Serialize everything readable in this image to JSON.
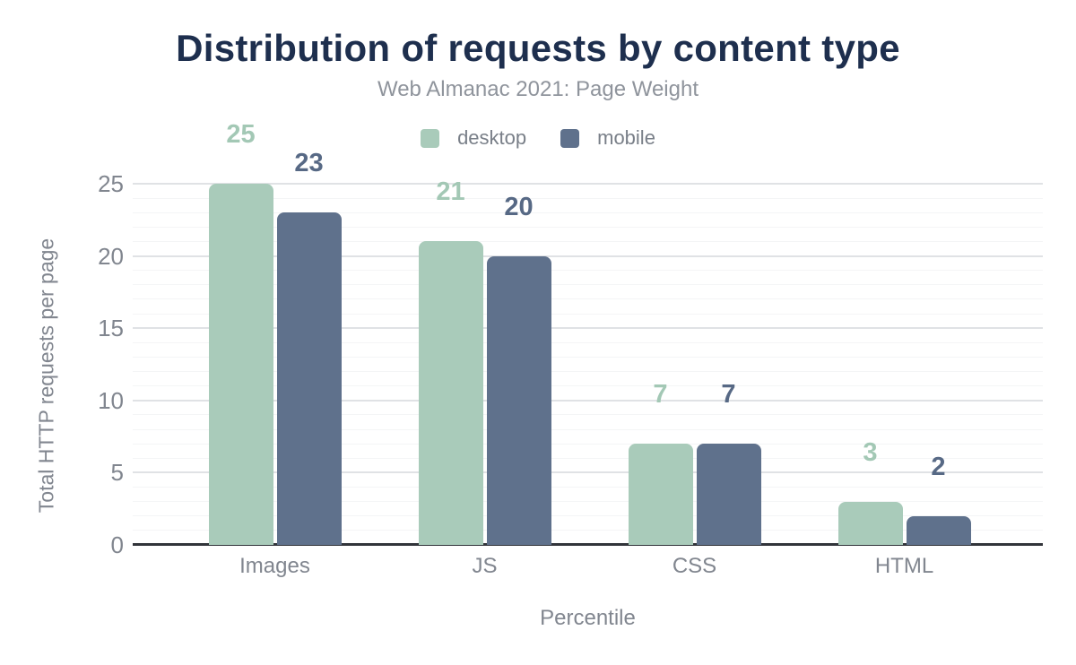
{
  "chart_data": {
    "type": "bar",
    "title": "Distribution of requests by content type",
    "subtitle": "Web Almanac 2021: Page Weight",
    "xlabel": "Percentile",
    "ylabel": "Total HTTP requests per page",
    "categories": [
      "Images",
      "JS",
      "CSS",
      "HTML"
    ],
    "series": [
      {
        "name": "desktop",
        "values": [
          25,
          21,
          7,
          3
        ],
        "color": "#a9cbba",
        "label_color": "#a3c8b5"
      },
      {
        "name": "mobile",
        "values": [
          23,
          20,
          7,
          2
        ],
        "color": "#5f718c",
        "label_color": "#576985"
      }
    ],
    "ylim": [
      0,
      25
    ],
    "yticks": [
      0,
      5,
      10,
      15,
      20,
      25
    ],
    "grid": "horizontal-minor-every-1-major-every-5",
    "legend_position": "top-center",
    "value_labels": true
  },
  "colors": {
    "background": "#ffffff",
    "title": "#1e2f4e",
    "subtitle": "#8f949c",
    "axis_text": "#81868f",
    "legend_text": "#797f88",
    "desktop": "#a9cbba",
    "mobile": "#5f718c",
    "major_gridline": "#e0e2e5",
    "minor_gridline": "#f4f5f6",
    "axis_line": "#31343a"
  }
}
